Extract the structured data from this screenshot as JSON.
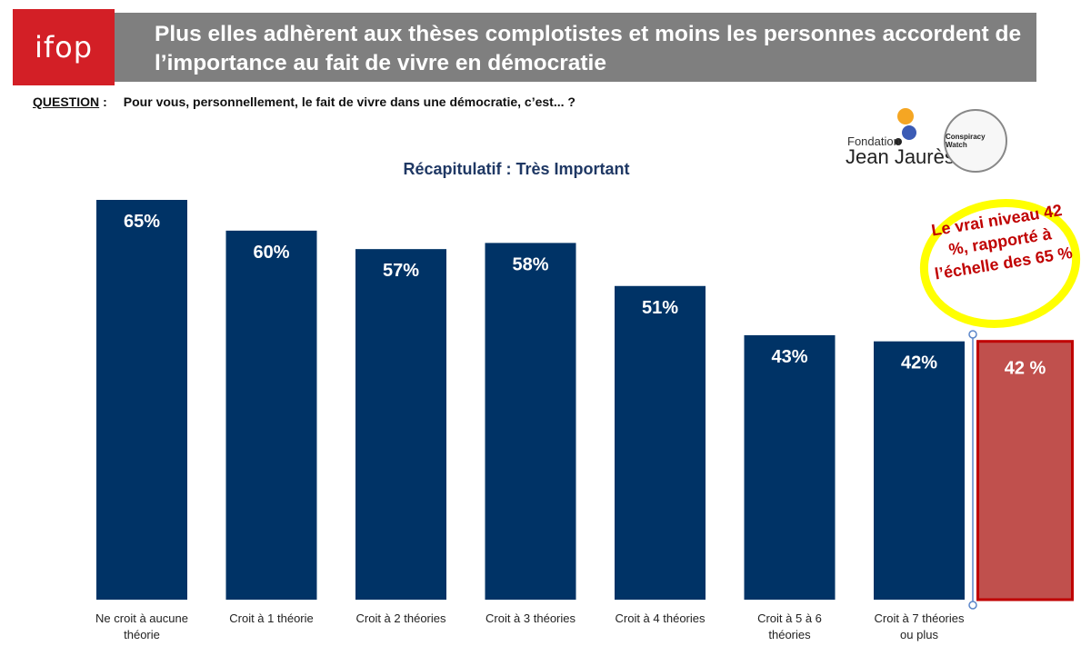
{
  "header": {
    "logo_text": "ifop",
    "title": "Plus elles adhèrent aux thèses complotistes et moins les personnes accordent de l’importance au fait de vivre en démocratie"
  },
  "question": {
    "label": "QUESTION",
    "separator": ":",
    "text": "Pour vous, personnellement, le fait de vivre dans une démocratie, c’est... ?"
  },
  "partners": {
    "fjj_line1": "Fondation",
    "fjj_line2": "Jean Jaurès",
    "cw_label": "Conspiracy Watch"
  },
  "annotation": {
    "text": "Le vrai niveau 42 %, rapporté à l’échelle des 65 %",
    "highlight_color": "#ffff00",
    "text_color": "#c00000"
  },
  "colors": {
    "bar": "#003366",
    "highlight_bar": "#c0504d",
    "highlight_border": "#c00000",
    "title_bar": "#7f7f7f",
    "logo": "#d31f26"
  },
  "chart_data": {
    "type": "bar",
    "title": "Récapitulatif : Très Important",
    "categories": [
      "Ne croit à aucune théorie",
      "Croit à 1 théorie",
      "Croit à 2 théories",
      "Croit à 3 théories",
      "Croit à 4 théories",
      "Croit à 5 à 6 théories",
      "Croit à 7 théories ou plus"
    ],
    "values": [
      65,
      60,
      57,
      58,
      51,
      43,
      42
    ],
    "value_labels": [
      "65%",
      "60%",
      "57%",
      "58%",
      "51%",
      "43%",
      "42%"
    ],
    "highlight": {
      "value": 42,
      "label": "42 %",
      "rescaled_to": 65
    }
  }
}
